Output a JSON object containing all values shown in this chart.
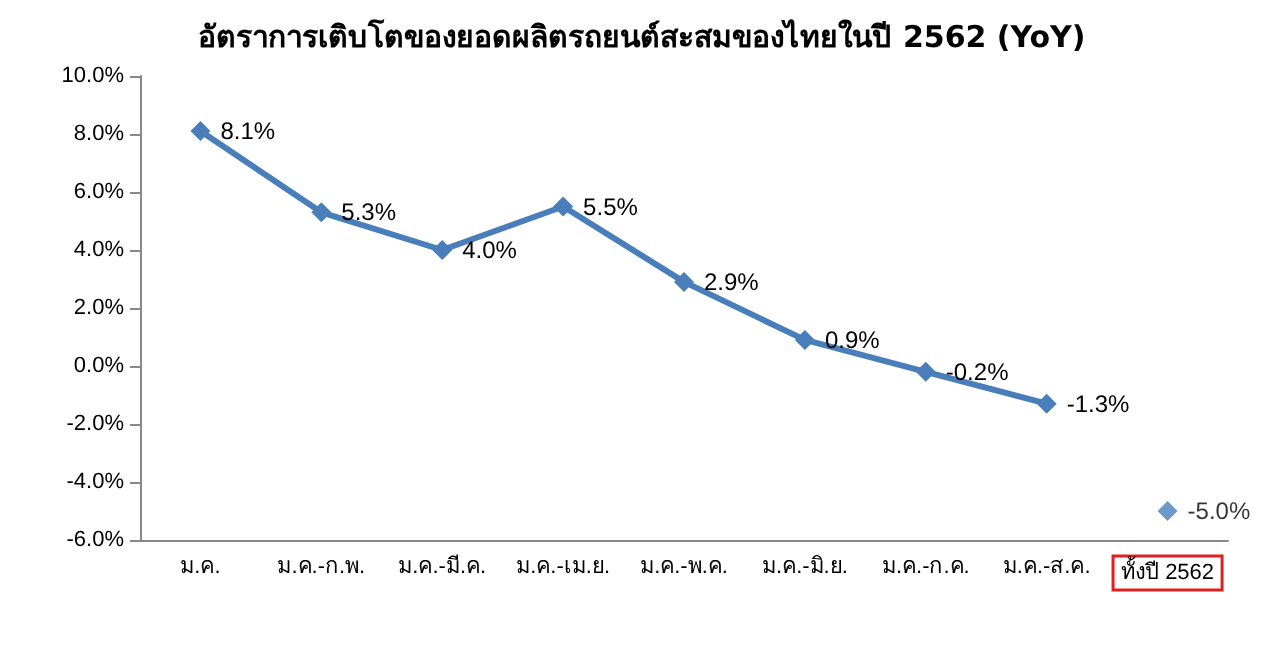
{
  "chart_data": {
    "type": "line",
    "title": "อัตราการเติบโตของยอดผลิตรถยนต์สะสมของไทยในปี 2562 (YoY)",
    "categories": [
      "ม.ค.",
      "ม.ค.-ก.พ.",
      "ม.ค.-มี.ค.",
      "ม.ค.-เม.ย.",
      "ม.ค.-พ.ค.",
      "ม.ค.-มิ.ย.",
      "ม.ค.-ก.ค.",
      "ม.ค.-ส.ค.",
      "ทั้งปี 2562"
    ],
    "series": [
      {
        "color": "#4a7ebb",
        "values": [
          8.1,
          5.3,
          4.0,
          5.5,
          2.9,
          0.9,
          -0.2,
          -1.3,
          null
        ],
        "value_labels": [
          "8.1%",
          "5.3%",
          "4.0%",
          "5.5%",
          "2.9%",
          "0.9%",
          "-0.2%",
          "-1.3%",
          null
        ]
      },
      {
        "type": "scatter",
        "color": "#4a7ebb",
        "x": [
          "ทั้งปี 2562"
        ],
        "values": [
          -5.0
        ],
        "value_labels": [
          "-5.0%"
        ]
      }
    ],
    "ylim": [
      -6,
      10
    ],
    "yticks": [
      {
        "value": -6,
        "label": "-6.0%"
      },
      {
        "value": -4,
        "label": "-4.0%"
      },
      {
        "value": -2,
        "label": "-2.0%"
      },
      {
        "value": 0,
        "label": "0.0%"
      },
      {
        "value": 2,
        "label": "2.0%"
      },
      {
        "value": 4,
        "label": "4.0%"
      },
      {
        "value": 6,
        "label": "6.0%"
      },
      {
        "value": 8,
        "label": "8.0%"
      },
      {
        "value": 10,
        "label": "10.0%"
      }
    ],
    "grid": false,
    "marker": "diamond",
    "line_style": "solid"
  }
}
